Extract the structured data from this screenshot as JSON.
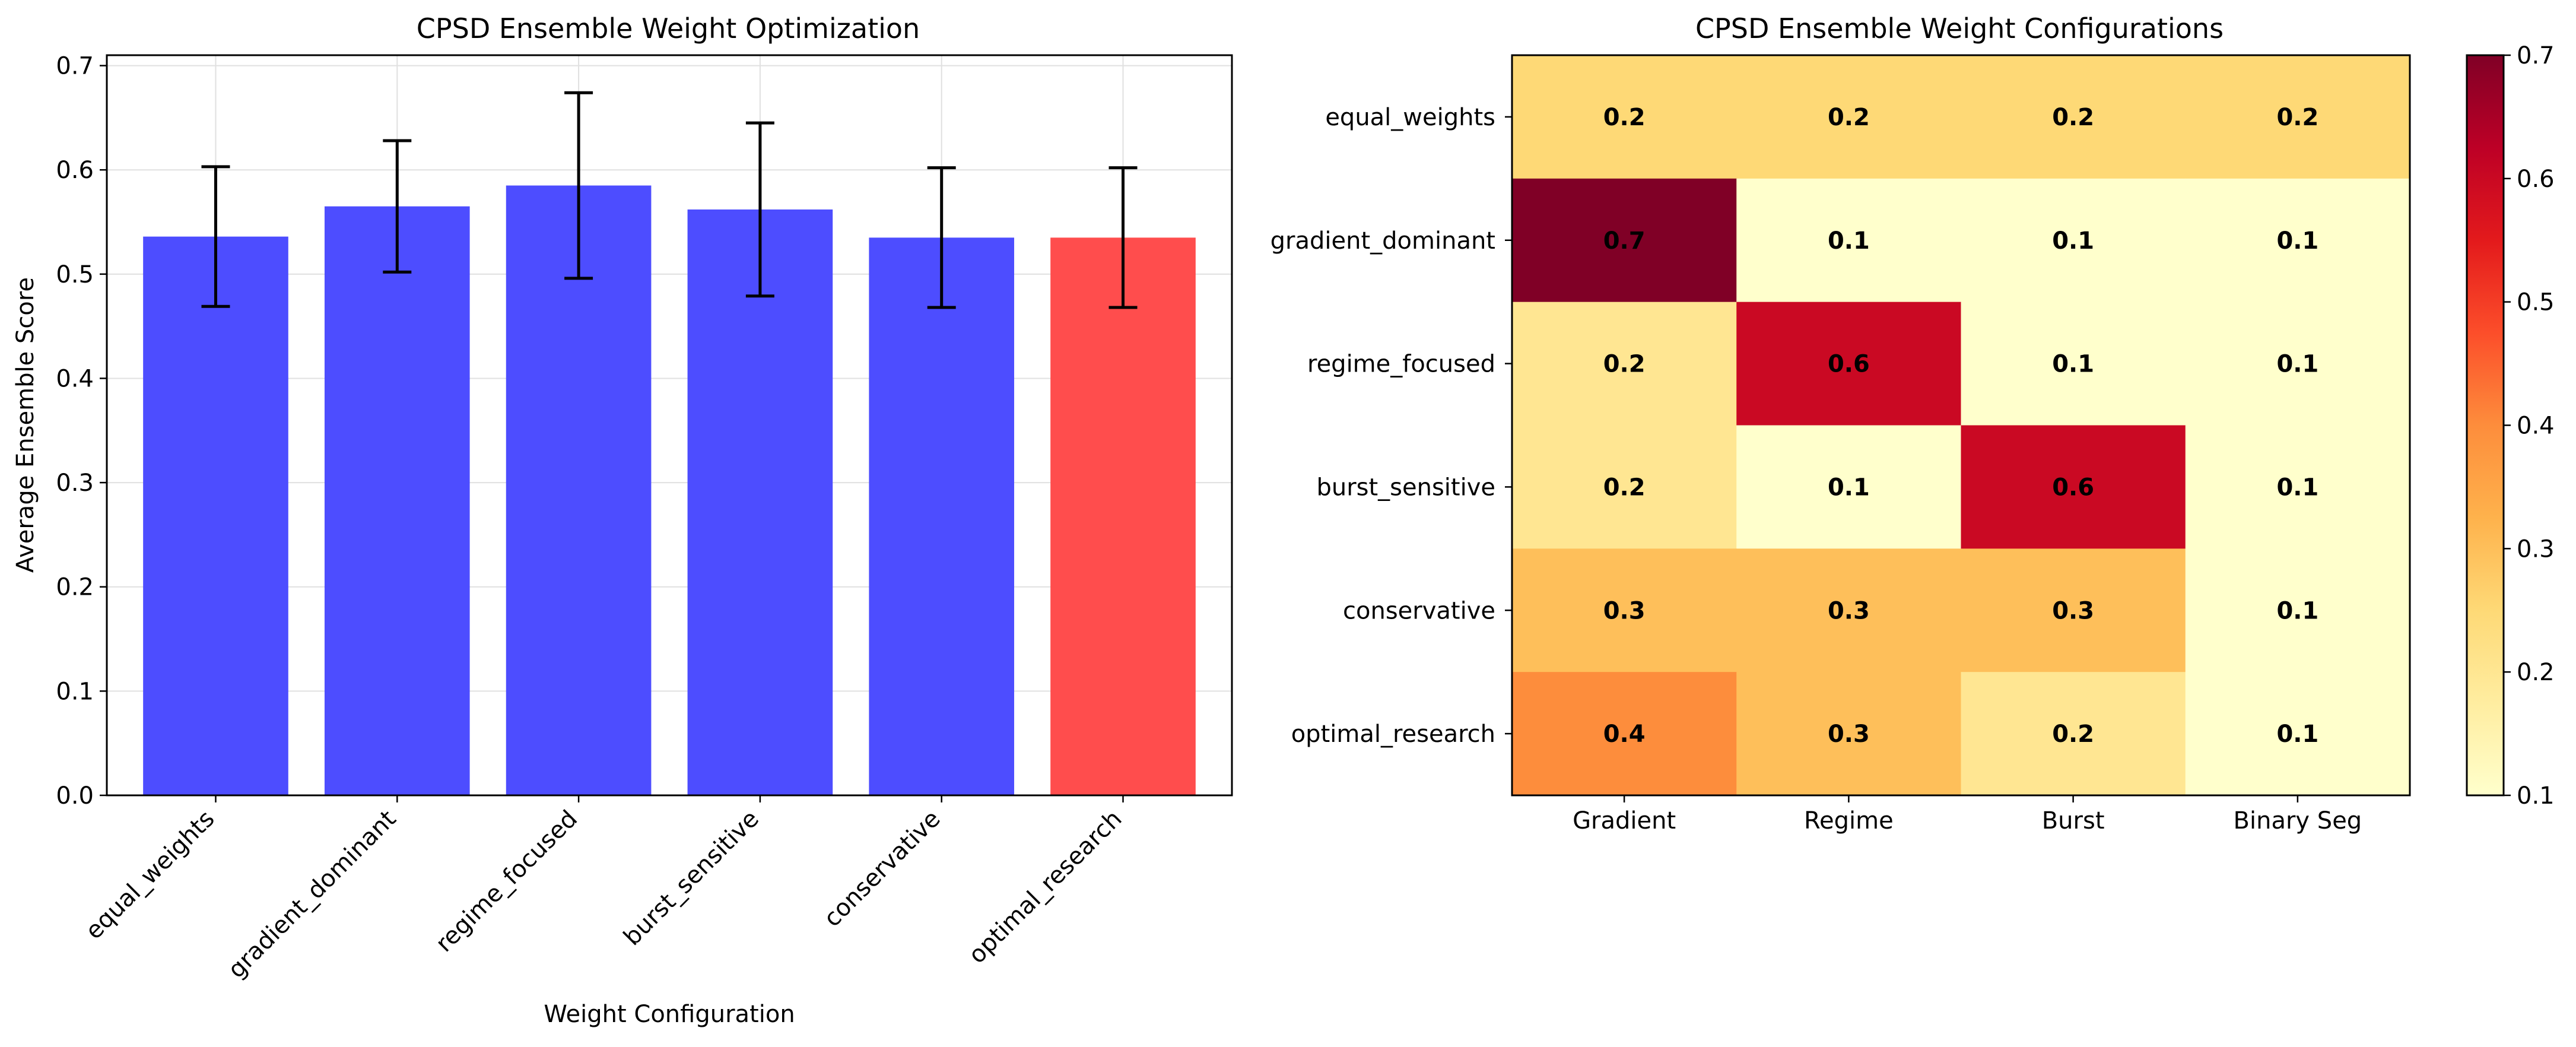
{
  "chart_data": [
    {
      "type": "bar",
      "title": "CPSD Ensemble Weight Optimization",
      "xlabel": "Weight Configuration",
      "ylabel": "Average Ensemble Score",
      "ylim": [
        0,
        0.71
      ],
      "yticks": [
        "0.0",
        "0.1",
        "0.2",
        "0.3",
        "0.4",
        "0.5",
        "0.6",
        "0.7"
      ],
      "categories": [
        "equal_weights",
        "gradient_dominant",
        "regime_focused",
        "burst_sensitive",
        "conservative",
        "optimal_research"
      ],
      "values": [
        0.536,
        0.565,
        0.585,
        0.562,
        0.535,
        0.535
      ],
      "errors": [
        0.067,
        0.063,
        0.089,
        0.083,
        0.067,
        0.067
      ],
      "bar_colors": [
        "#4d4dff",
        "#4d4dff",
        "#4d4dff",
        "#4d4dff",
        "#4d4dff",
        "#ff4d4d"
      ],
      "grid": true,
      "legend": "none"
    },
    {
      "type": "heatmap",
      "title": "CPSD Ensemble Weight Configurations",
      "rows": [
        "equal_weights",
        "gradient_dominant",
        "regime_focused",
        "burst_sensitive",
        "conservative",
        "optimal_research"
      ],
      "columns": [
        "Gradient",
        "Regime",
        "Burst",
        "Binary Seg"
      ],
      "values": [
        [
          0.25,
          0.25,
          0.25,
          0.25
        ],
        [
          0.7,
          0.1,
          0.1,
          0.1
        ],
        [
          0.2,
          0.6,
          0.1,
          0.1
        ],
        [
          0.2,
          0.1,
          0.6,
          0.1
        ],
        [
          0.3,
          0.3,
          0.3,
          0.1
        ],
        [
          0.4,
          0.3,
          0.2,
          0.1
        ]
      ],
      "labels": [
        [
          "0.2",
          "0.2",
          "0.2",
          "0.2"
        ],
        [
          "0.7",
          "0.1",
          "0.1",
          "0.1"
        ],
        [
          "0.2",
          "0.6",
          "0.1",
          "0.1"
        ],
        [
          "0.2",
          "0.1",
          "0.6",
          "0.1"
        ],
        [
          "0.3",
          "0.3",
          "0.3",
          "0.1"
        ],
        [
          "0.4",
          "0.3",
          "0.2",
          "0.1"
        ]
      ],
      "colormap": "YlOrRd",
      "color_range": [
        0.1,
        0.7
      ],
      "colorbar_ticks": [
        "0.1",
        "0.2",
        "0.3",
        "0.4",
        "0.5",
        "0.6",
        "0.7"
      ]
    }
  ]
}
